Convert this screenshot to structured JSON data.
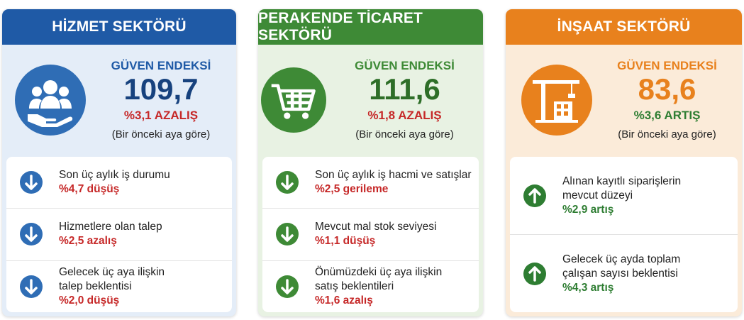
{
  "cards": [
    {
      "title": "HİZMET SEKTÖRÜ",
      "index_label": "GÜVEN ENDEKSİ",
      "value": "109,7",
      "change": "%3,1 AZALIŞ",
      "note": "(Bir önceki aya göre)",
      "items": [
        {
          "lines": [
            "Son üç aylık iş durumu"
          ],
          "change": "%4,7 düşüş"
        },
        {
          "lines": [
            "Hizmetlere olan talep"
          ],
          "change": "%2,5 azalış"
        },
        {
          "lines": [
            "Gelecek üç aya ilişkin",
            "talep beklentisi"
          ],
          "change": "%2,0 düşüş"
        }
      ]
    },
    {
      "title": "PERAKENDE TİCARET SEKTÖRÜ",
      "index_label": "GÜVEN ENDEKSİ",
      "value": "111,6",
      "change": "%1,8 AZALIŞ",
      "note": "(Bir önceki aya göre)",
      "items": [
        {
          "lines": [
            "Son üç aylık iş hacmi ve satışlar"
          ],
          "change": "%2,5 gerileme"
        },
        {
          "lines": [
            "Mevcut mal stok seviyesi"
          ],
          "change": "%1,1 düşüş"
        },
        {
          "lines": [
            "Önümüzdeki üç aya ilişkin",
            "satış beklentileri"
          ],
          "change": "%1,6 azalış"
        }
      ]
    },
    {
      "title": "İNŞAAT SEKTÖRÜ",
      "index_label": "GÜVEN ENDEKSİ",
      "value": "83,6",
      "change": "%3,6 ARTIŞ",
      "note": "(Bir önceki aya göre)",
      "items": [
        {
          "lines": [
            "Alınan kayıtlı siparişlerin",
            "mevcut düzeyi"
          ],
          "change": "%2,9 artış"
        },
        {
          "lines": [
            "Gelecek üç ayda toplam",
            "çalışan sayısı beklentisi"
          ],
          "change": "%4,3 artış"
        }
      ]
    }
  ]
}
